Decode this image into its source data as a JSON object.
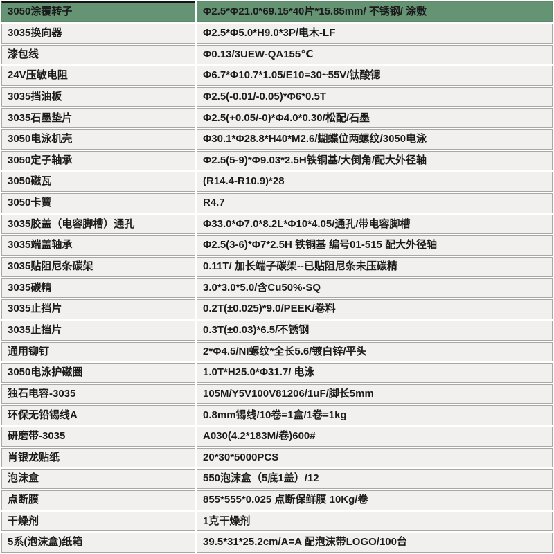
{
  "table": {
    "title": "parts-specification-table",
    "highlighted_row_index": 0,
    "highlight_color": "#649473",
    "row_background": "#f1f0ee",
    "border_color": "#a8a8a8",
    "rows": [
      {
        "name": "3050涂覆转子",
        "spec": "Φ2.5*Φ21.0*69.15*40片*15.85mm/ 不锈钢/ 涂敷"
      },
      {
        "name": "3035换向器",
        "spec": "Φ2.5*Φ5.0*H9.0*3P/电木-LF"
      },
      {
        "name": "漆包线",
        "spec": "Φ0.13/3UEW-QA155℃"
      },
      {
        "name": "24V压敏电阻",
        "spec": "Φ6.7*Φ10.7*1.05/E10=30~55V/钛酸锶"
      },
      {
        "name": "3035挡油板",
        "spec": "Φ2.5(-0.01/-0.05)*Φ6*0.5T"
      },
      {
        "name": "3035石墨垫片",
        "spec": "Φ2.5(+0.05/-0)*Φ4.0*0.30/松配/石墨"
      },
      {
        "name": "3050电泳机壳",
        "spec": "Φ30.1*Φ28.8*H40*M2.6/蝴蝶位两螺纹/3050电泳"
      },
      {
        "name": "3050定子轴承",
        "spec": "Φ2.5(5-9)*Φ9.03*2.5H铁铜基/大倒角/配大外径轴"
      },
      {
        "name": "3050磁瓦",
        "spec": "(R14.4-R10.9)*28"
      },
      {
        "name": "3050卡簧",
        "spec": "R4.7"
      },
      {
        "name": "3035胶盖（电容脚槽）通孔",
        "spec": "Φ33.0*Φ7.0*8.2L*Φ10*4.05/通孔/带电容脚槽"
      },
      {
        "name": "3035端盖轴承",
        "spec": "Φ2.5(3-6)*Φ7*2.5H 铁铜基 编号01-515 配大外径轴"
      },
      {
        "name": "3035贴阻尼条碳架",
        "spec": "0.11T/ 加长端子碳架--已贴阻尼条未压碳精"
      },
      {
        "name": "3035碳精",
        "spec": "3.0*3.0*5.0/含Cu50%-SQ"
      },
      {
        "name": "3035止挡片",
        "spec": "0.2T(±0.025)*9.0/PEEK/卷料"
      },
      {
        "name": "3035止挡片",
        "spec": "0.3T(±0.03)*6.5/不锈钢"
      },
      {
        "name": "通用铆钉",
        "spec": "2*Φ4.5/NI螺纹*全长5.6/镀白锌/平头"
      },
      {
        "name": "3050电泳护磁圈",
        "spec": "1.0T*H25.0*Φ31.7/ 电泳"
      },
      {
        "name": "独石电容-3035",
        "spec": "105M/Y5V100V81206/1uF/脚长5mm"
      },
      {
        "name": "环保无铅锡线A",
        "spec": "0.8mm锡线/10卷=1盒/1卷=1kg"
      },
      {
        "name": "研磨带-3035",
        "spec": "A030(4.2*183M/卷)600#"
      },
      {
        "name": "肖银龙贴纸",
        "spec": "20*30*5000PCS"
      },
      {
        "name": "泡沫盒",
        "spec": "550泡沫盒（5底1盖）/12"
      },
      {
        "name": "点断膜",
        "spec": "855*555*0.025 点断保鲜膜 10Kg/卷"
      },
      {
        "name": "干燥剂",
        "spec": "1克干燥剂"
      },
      {
        "name": "5系(泡沫盒)纸箱",
        "spec": "39.5*31*25.2cm/A=A 配泡沫带LOGO/100台"
      }
    ]
  }
}
